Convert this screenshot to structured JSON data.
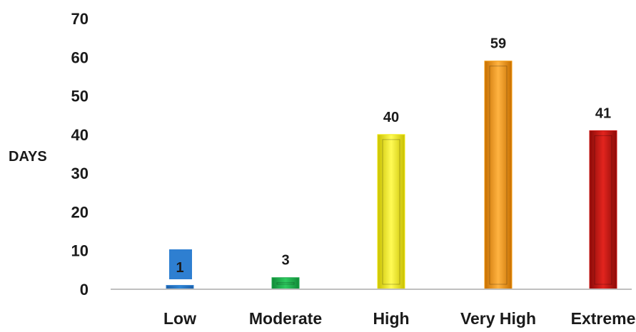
{
  "chart_data": {
    "type": "bar",
    "categories": [
      "Low",
      "Moderate",
      "High",
      "Very High",
      "Extreme"
    ],
    "values": [
      1,
      3,
      40,
      59,
      41
    ],
    "ylabel": "DAYS",
    "xlabel": "",
    "ylim": [
      0,
      70
    ],
    "yticks": [
      0,
      10,
      20,
      30,
      40,
      50,
      60,
      70
    ],
    "colors": [
      "#2e7fd1",
      "#1faa4c",
      "#f2ea0c",
      "#f59a0c",
      "#cc1512"
    ],
    "grid": false,
    "legend": "none"
  }
}
